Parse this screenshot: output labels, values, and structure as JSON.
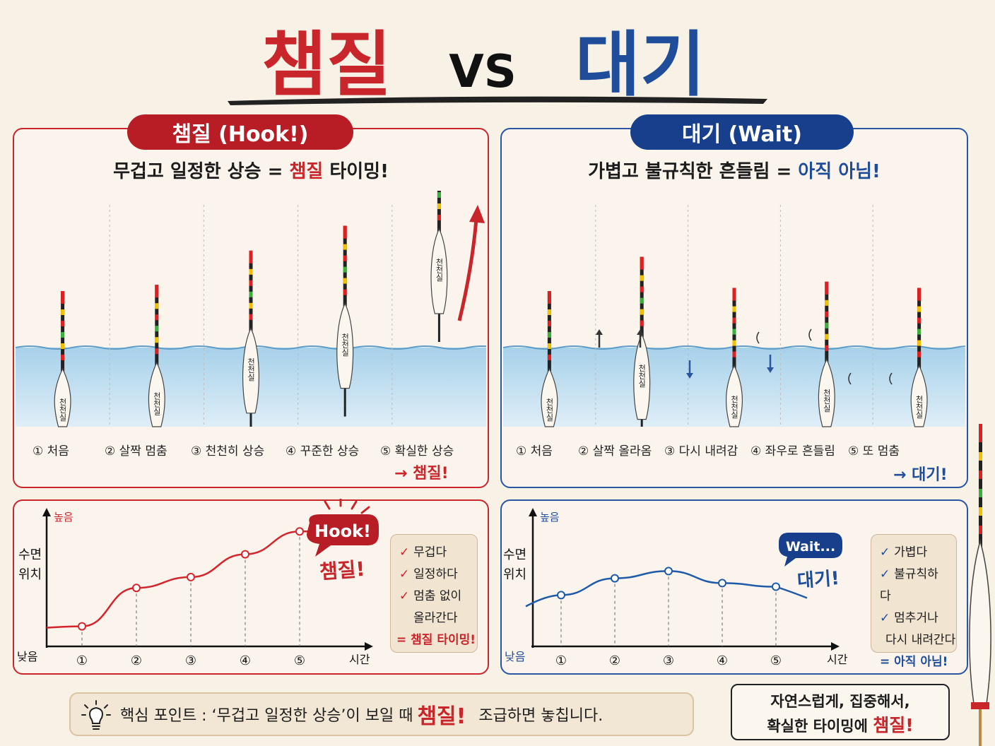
{
  "header": {
    "left_word": "챔질",
    "vs": "VS",
    "right_word": "대기"
  },
  "colors": {
    "hook_red": "#c9262c",
    "wait_blue": "#1f4d9a",
    "water": "#8fc1e0",
    "background": "#f8f1e6"
  },
  "hook_panel": {
    "badge": "챔질 (Hook!)",
    "subtitle_pre": "무겁고 일정한 상승 = ",
    "subtitle_hl": "챔질",
    "subtitle_post": " 타이밍!",
    "float_text": "천천실",
    "steps": [
      "① 처음",
      "② 살짝 멈춤",
      "③ 천천히 상승",
      "④ 꾸준한 상승",
      "⑤ 확실한 상승"
    ],
    "conclusion": "→ 챔질!",
    "float_rise": [
      0,
      0.04,
      0.26,
      0.42,
      0.9
    ]
  },
  "wait_panel": {
    "badge": "대기 (Wait)",
    "subtitle_pre": "가볍고 불규칙한 흔들림 = ",
    "subtitle_hl": "아직 아님!",
    "float_text": "천천실",
    "steps": [
      "① 처음",
      "② 살짝 올라옴",
      "③ 다시 내려감",
      "④ 좌우로 흔들림",
      "⑤ 또 멈춤"
    ],
    "conclusion": "→ 대기!",
    "float_rise": [
      0,
      0.22,
      0.02,
      0.06,
      0.02
    ]
  },
  "hook_chart": {
    "y_top": "높음",
    "y_bottom": "낮음",
    "y_label_1": "수면",
    "y_label_2": "위치",
    "x_label": "시간",
    "ticks": [
      "①",
      "②",
      "③",
      "④",
      "⑤"
    ],
    "bubble": "Hook!",
    "exclaim": "챔질!",
    "checks": [
      "무겁다",
      "일정하다",
      "멈춤 없이",
      "올라간다"
    ],
    "check_result": "= 챔질 타이밍!"
  },
  "wait_chart": {
    "y_top": "높음",
    "y_bottom": "낮음",
    "y_label_1": "수면",
    "y_label_2": "위치",
    "x_label": "시간",
    "ticks": [
      "①",
      "②",
      "③",
      "④",
      "⑤"
    ],
    "bubble": "Wait...",
    "exclaim": "대기!",
    "checks": [
      "가볍다",
      "불규칙하다",
      "멈추거나",
      "다시 내려간다"
    ],
    "check_result": "= 아직 아님!"
  },
  "chart_data": [
    {
      "type": "line",
      "x": [
        1,
        2,
        3,
        4,
        5
      ],
      "y": [
        0.12,
        0.44,
        0.53,
        0.72,
        0.91
      ],
      "xlabel": "시간",
      "ylabel": "수면 위치",
      "ylim": [
        0,
        1
      ]
    },
    {
      "type": "line",
      "x": [
        1,
        2,
        3,
        4,
        5
      ],
      "y": [
        0.38,
        0.52,
        0.58,
        0.48,
        0.45
      ],
      "xlabel": "시간",
      "ylabel": "수면 위치",
      "ylim": [
        0,
        1
      ]
    }
  ],
  "tip": {
    "pre": "핵심 포인트 : ‘무겁고 일정한 상승’이 보일 때 ",
    "hl": "챔질!",
    "post": " 조급하면 놓칩니다."
  },
  "final_note": {
    "line1": "자연스럽게, 집중해서,",
    "line2_pre": "확실한 타이밍에 ",
    "line2_hl": "챔질!"
  }
}
